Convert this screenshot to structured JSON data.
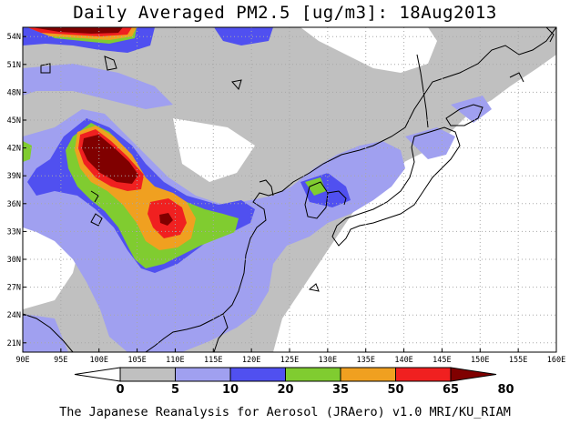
{
  "title": "Daily Averaged PM2.5 [ug/m3]: 18Aug2013",
  "footer": "The Japanese Reanalysis for Aerosol (JRAero) v1.0 MRI/KU_RIAM",
  "map": {
    "lon_range": [
      90,
      160
    ],
    "lat_range": [
      20,
      55
    ],
    "lon_ticks": [
      "90E",
      "95E",
      "100E",
      "105E",
      "110E",
      "115E",
      "120E",
      "125E",
      "130E",
      "135E",
      "140E",
      "145E",
      "150E",
      "155E",
      "160E"
    ],
    "lat_ticks": [
      "54N",
      "51N",
      "48N",
      "45N",
      "42N",
      "39N",
      "36N",
      "33N",
      "30N",
      "27N",
      "24N",
      "21N"
    ],
    "lat_values": [
      54,
      51,
      48,
      45,
      42,
      39,
      36,
      33,
      30,
      27,
      24,
      21
    ]
  },
  "colorbar": {
    "levels": [
      "0",
      "5",
      "10",
      "20",
      "35",
      "50",
      "65",
      "80"
    ],
    "colors": [
      "#ffffff",
      "#c0c0c0",
      "#a0a0f0",
      "#5050f0",
      "#80cc30",
      "#f0a020",
      "#f02020",
      "#800000"
    ]
  }
}
